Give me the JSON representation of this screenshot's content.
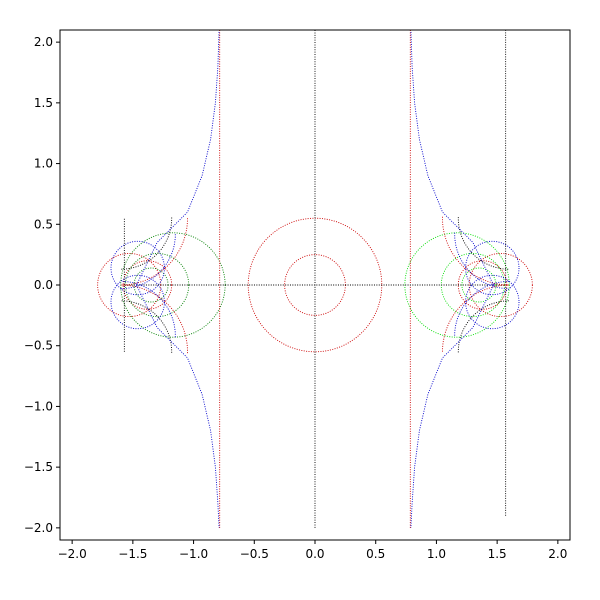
{
  "chart_data": {
    "type": "scatter",
    "title": "",
    "xlabel": "",
    "ylabel": "",
    "xlim": [
      -2.1,
      2.1
    ],
    "ylim": [
      -2.1,
      2.1
    ],
    "grid": false,
    "legend": "none",
    "x_ticks": [
      -2.0,
      -1.5,
      -1.0,
      -0.5,
      0.0,
      0.5,
      1.0,
      1.5,
      2.0
    ],
    "y_ticks": [
      -2.0,
      -1.5,
      -1.0,
      -0.5,
      0.0,
      0.5,
      1.0,
      1.5,
      2.0
    ],
    "x_tick_labels": [
      "−2.0",
      "−1.5",
      "−1.0",
      "−0.5",
      "0.0",
      "0.5",
      "1.0",
      "1.5",
      "2.0"
    ],
    "y_tick_labels": [
      "−2.0",
      "−1.5",
      "−1.0",
      "−0.5",
      "0.0",
      "0.5",
      "1.0",
      "1.5",
      "2.0"
    ],
    "colors": {
      "red": "#cc0000",
      "green": "#008000",
      "lime": "#00dd00",
      "blue": "#0000cc",
      "black": "#000000"
    },
    "series": [
      {
        "color": "#cc0000",
        "style": "circles",
        "circles": [
          [
            0,
            0,
            0.25
          ],
          [
            0,
            0,
            0.55
          ],
          [
            -1.38,
            0,
            0.2
          ],
          [
            1.38,
            0,
            0.2
          ],
          [
            -1.53,
            0,
            0.26
          ],
          [
            1.53,
            0,
            0.26
          ]
        ]
      },
      {
        "color": "#008000",
        "style": "circles",
        "circles": [
          [
            -1.17,
            0,
            0.43
          ],
          [
            -1.35,
            0,
            0.14
          ],
          [
            -1.3,
            0,
            0.26
          ]
        ]
      },
      {
        "color": "#00dd00",
        "style": "circles",
        "circles": [
          [
            1.17,
            0,
            0.43
          ],
          [
            1.35,
            0,
            0.14
          ],
          [
            1.3,
            0,
            0.26
          ]
        ]
      },
      {
        "color": "#0000cc",
        "style": "circles",
        "circles": [
          [
            -1.46,
            0.14,
            0.22
          ],
          [
            -1.46,
            -0.14,
            0.22
          ],
          [
            1.46,
            0.14,
            0.22
          ],
          [
            1.46,
            -0.14,
            0.22
          ]
        ]
      },
      {
        "color": "#cc0000",
        "style": "lines",
        "lines": [
          [
            [
              -0.785,
              -2.0
            ],
            [
              -0.785,
              2.1
            ]
          ],
          [
            [
              0.785,
              -2.0
            ],
            [
              0.785,
              2.1
            ]
          ]
        ]
      },
      {
        "color": "#000000",
        "style": "lines",
        "lines": [
          [
            [
              -1.57,
              0
            ],
            [
              1.57,
              0
            ]
          ],
          [
            [
              0,
              -2.0
            ],
            [
              0,
              2.1
            ]
          ],
          [
            [
              -1.57,
              -0.55
            ],
            [
              -1.57,
              0.55
            ]
          ],
          [
            [
              1.57,
              -1.9
            ],
            [
              1.57,
              2.1
            ]
          ]
        ]
      },
      {
        "color": "#cc0000",
        "style": "arcs",
        "arcs": [
          [
            -1.6,
            0.55,
            0.55,
            -1.56,
            0.02
          ],
          [
            -1.6,
            -0.55,
            0.55,
            -0.02,
            1.56
          ],
          [
            1.6,
            0.55,
            0.55,
            3.12,
            4.7
          ],
          [
            1.6,
            -0.55,
            0.55,
            1.58,
            3.16
          ]
        ]
      },
      {
        "color": "#000000",
        "style": "arcs",
        "arcs": [
          [
            -1.6,
            0.55,
            0.42,
            -1.56,
            0.02
          ],
          [
            -1.6,
            -0.55,
            0.42,
            -0.02,
            1.56
          ],
          [
            1.6,
            0.55,
            0.42,
            3.12,
            4.7
          ],
          [
            1.6,
            -0.55,
            0.42,
            1.58,
            3.16
          ]
        ]
      },
      {
        "color": "#0000cc",
        "style": "arcs",
        "arcs": [
          [
            -1.6,
            0.42,
            0.45,
            -1.56,
            0.02
          ],
          [
            -1.6,
            -0.42,
            0.45,
            -0.02,
            1.56
          ],
          [
            1.6,
            0.42,
            0.45,
            3.12,
            4.7
          ],
          [
            1.6,
            -0.42,
            0.45,
            1.58,
            3.16
          ]
        ]
      },
      {
        "color": "#0000cc",
        "style": "curves",
        "curves": [
          [
            [
              -1.47,
              0
            ],
            [
              -1.3,
              0.35
            ],
            [
              -1.05,
              0.6
            ],
            [
              -0.93,
              0.9
            ],
            [
              -0.86,
              1.2
            ],
            [
              -0.82,
              1.5
            ],
            [
              -0.8,
              1.8
            ],
            [
              -0.79,
              2.1
            ]
          ],
          [
            [
              -1.47,
              0
            ],
            [
              -1.3,
              -0.35
            ],
            [
              -1.05,
              -0.6
            ],
            [
              -0.93,
              -0.9
            ],
            [
              -0.86,
              -1.2
            ],
            [
              -0.82,
              -1.5
            ],
            [
              -0.8,
              -1.8
            ],
            [
              -0.79,
              -2.0
            ]
          ],
          [
            [
              1.47,
              0
            ],
            [
              1.3,
              0.35
            ],
            [
              1.05,
              0.6
            ],
            [
              0.93,
              0.9
            ],
            [
              0.86,
              1.2
            ],
            [
              0.82,
              1.5
            ],
            [
              0.8,
              1.8
            ],
            [
              0.79,
              2.1
            ]
          ],
          [
            [
              1.47,
              0
            ],
            [
              1.3,
              -0.35
            ],
            [
              1.05,
              -0.6
            ],
            [
              0.93,
              -0.9
            ],
            [
              0.86,
              -1.2
            ],
            [
              0.82,
              -1.5
            ],
            [
              0.8,
              -1.8
            ],
            [
              0.79,
              -2.0
            ]
          ]
        ]
      }
    ]
  }
}
